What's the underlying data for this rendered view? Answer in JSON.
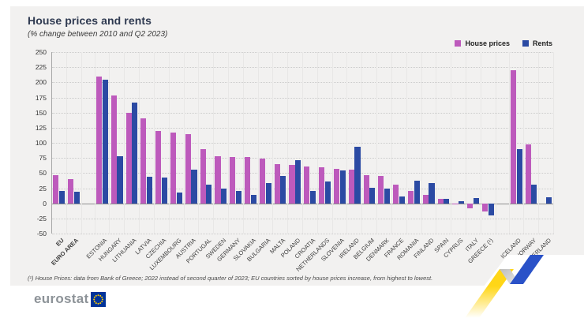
{
  "header": {
    "title": "House prices and rents",
    "subtitle": "(% change between 2010 and Q2 2023)"
  },
  "legend": [
    {
      "label": "House prices",
      "color": "#bd5abc"
    },
    {
      "label": "Rents",
      "color": "#2b4aa3"
    }
  ],
  "chart_data": {
    "type": "bar",
    "title": "House prices and rents",
    "subtitle": "(% change between 2010 and Q2 2023)",
    "ylabel": "% change",
    "ylim": [
      -50,
      250
    ],
    "yticks": [
      250,
      225,
      200,
      175,
      150,
      125,
      100,
      75,
      50,
      25,
      0,
      -25,
      -50
    ],
    "grid": true,
    "legend_position": "top-right",
    "categories": [
      "EU",
      "EURO AREA",
      "ESTONIA",
      "HUNGARY",
      "LITHUANIA",
      "LATVIA",
      "CZECHIA",
      "LUXEMBOURG",
      "AUSTRIA",
      "PORTUGAL",
      "SWEDEN",
      "GERMANY",
      "SLOVAKIA",
      "BULGARIA",
      "MALTA",
      "POLAND",
      "CROATIA",
      "NETHERLANDS",
      "SLOVENIA",
      "IRELAND",
      "BELGIUM",
      "DENMARK",
      "FRANCE",
      "ROMANIA",
      "FINLAND",
      "SPAIN",
      "CYPRUS",
      "ITALY",
      "GREECE (¹)",
      "ICELAND",
      "NORWAY",
      "SWITZERLAND"
    ],
    "bold_category_indexes": [
      0,
      1
    ],
    "gap_after_indexes": [
      1,
      28
    ],
    "series": [
      {
        "name": "House prices",
        "color": "#bd5abc",
        "values": [
          46,
          40,
          209,
          178,
          150,
          141,
          119,
          117,
          114,
          89,
          78,
          77,
          76,
          74,
          65,
          64,
          61,
          60,
          57,
          56,
          46,
          45,
          31,
          21,
          14,
          8,
          -2,
          -8,
          -14,
          220,
          97,
          null
        ]
      },
      {
        "name": "Rents",
        "color": "#2b4aa3",
        "values": [
          21,
          19,
          205,
          78,
          166,
          44,
          43,
          18,
          56,
          31,
          24,
          20,
          14,
          33,
          45,
          71,
          21,
          36,
          55,
          94,
          26,
          25,
          11,
          37,
          33,
          7,
          4,
          9,
          -20,
          89,
          31,
          10
        ]
      }
    ]
  },
  "footnote": "(¹) House Prices: data from Bank of Greece; 2022 instead of second quarter of 2023; EU countries sorted by house prices increase, from highest to lowest.",
  "logo": {
    "text": "eurostat"
  },
  "brand_colors": {
    "eu_blue": "#003399",
    "star_yellow": "#ffcc00",
    "stripe_yellow": "#ffd617",
    "stripe_blue": "#2a52c8",
    "stripe_grey": "#c7c7c7"
  }
}
